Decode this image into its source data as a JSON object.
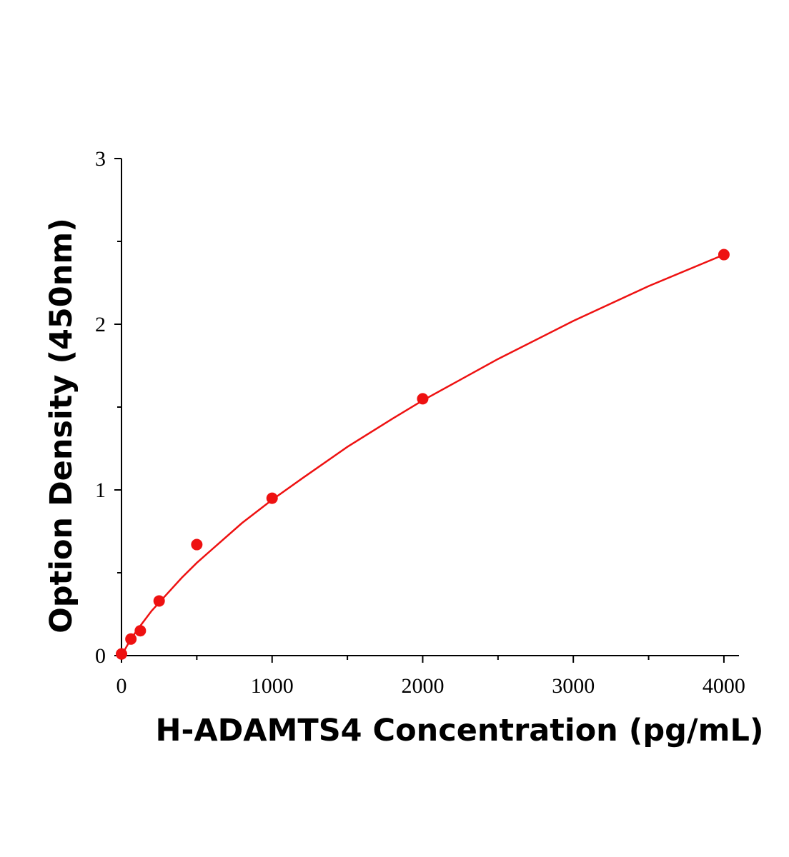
{
  "chart_data": {
    "type": "scatter",
    "xlabel": "H-ADAMTS4 Concentration (pg/mL)",
    "ylabel": "Option Density (450nm)",
    "xlim": [
      0,
      4100
    ],
    "ylim": [
      0,
      3
    ],
    "x_ticks": [
      0,
      1000,
      2000,
      3000,
      4000
    ],
    "x_tick_labels": [
      "0",
      "1000",
      "2000",
      "3000",
      "4000"
    ],
    "x_minor_ticks": [
      500,
      1500,
      2500,
      3500
    ],
    "y_ticks": [
      0,
      1,
      2,
      3
    ],
    "y_tick_labels": [
      "0",
      "1",
      "2",
      "3"
    ],
    "y_minor_ticks": [
      0.5,
      1.5,
      2.5
    ],
    "grid": false,
    "series": [
      {
        "type": "scatter",
        "color": "#ee1111",
        "x": [
          0,
          62.5,
          125,
          250,
          500,
          1000,
          2000,
          4000
        ],
        "y": [
          0.01,
          0.1,
          0.15,
          0.33,
          0.67,
          0.95,
          1.55,
          2.42
        ]
      },
      {
        "type": "line",
        "color": "#ee1111",
        "x": [
          0,
          50,
          100,
          200,
          300,
          400,
          500,
          600,
          800,
          1000,
          1200,
          1500,
          1800,
          2000,
          2500,
          3000,
          3500,
          4000
        ],
        "y": [
          0.0,
          0.08,
          0.15,
          0.27,
          0.37,
          0.47,
          0.56,
          0.64,
          0.8,
          0.94,
          1.07,
          1.26,
          1.43,
          1.54,
          1.79,
          2.02,
          2.23,
          2.42
        ]
      }
    ]
  }
}
